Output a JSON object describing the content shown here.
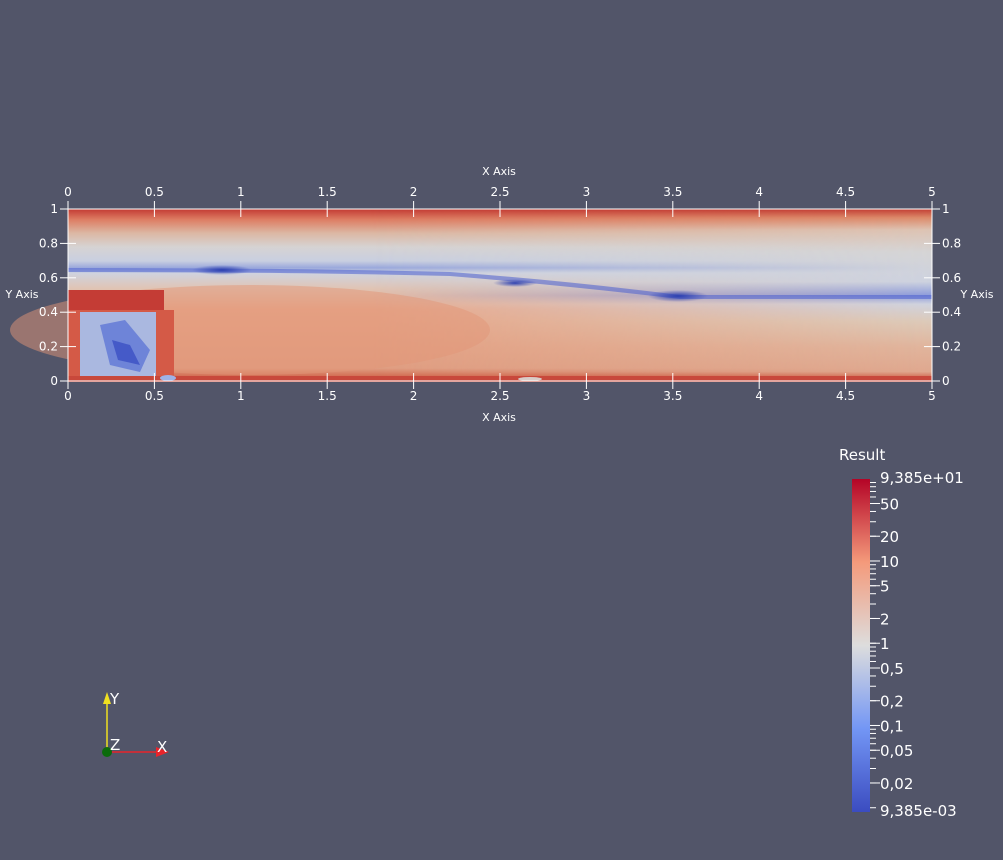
{
  "view": {
    "background": "#525569",
    "x_axis_title": "X Axis",
    "y_axis_title": "Y Axis",
    "x_ticks": [
      "0",
      "0.5",
      "1",
      "1.5",
      "2",
      "2.5",
      "3",
      "3.5",
      "4",
      "4.5",
      "5"
    ],
    "y_ticks": [
      "0",
      "0.2",
      "0.4",
      "0.6",
      "0.8",
      "1"
    ],
    "x_range": [
      0,
      5
    ],
    "y_range": [
      0,
      1
    ]
  },
  "colorbar": {
    "title": "Result",
    "scale": "log",
    "max_label": "9,385e+01",
    "min_label": "9,385e-03",
    "max_value": 93.85,
    "min_value": 0.009385,
    "labels": [
      {
        "text": "50",
        "value": 50
      },
      {
        "text": "20",
        "value": 20
      },
      {
        "text": "10",
        "value": 10
      },
      {
        "text": "5",
        "value": 5
      },
      {
        "text": "2",
        "value": 2
      },
      {
        "text": "1",
        "value": 1
      },
      {
        "text": "0,5",
        "value": 0.5
      },
      {
        "text": "0,2",
        "value": 0.2
      },
      {
        "text": "0,1",
        "value": 0.1
      },
      {
        "text": "0,05",
        "value": 0.05
      },
      {
        "text": "0,02",
        "value": 0.02
      }
    ],
    "colors": {
      "low": "#3b4cc0",
      "mid": "#dddddd",
      "high": "#b40426"
    }
  },
  "orientation_axes": {
    "x_label": "X",
    "y_label": "Y",
    "z_label": "Z",
    "x_color": "#e8242b",
    "y_color": "#f0e020",
    "z_color": "#0b6b0b"
  }
}
